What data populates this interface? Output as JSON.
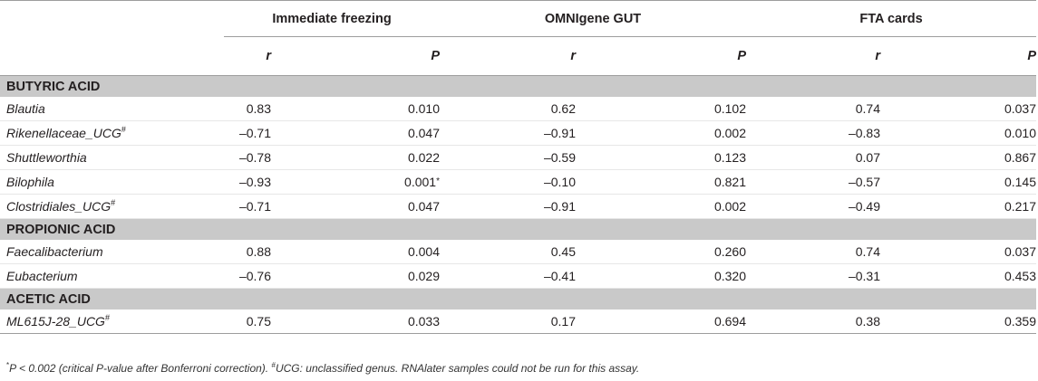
{
  "header": {
    "groups": [
      "Immediate freezing",
      "OMNIgene GUT",
      "FTA cards"
    ],
    "r_label": "r",
    "p_label": "P"
  },
  "sections": [
    {
      "title": "BUTYRIC ACID",
      "rows": [
        {
          "name": "Blautia",
          "sup": "",
          "if_r": "0.83",
          "if_p": "0.010",
          "if_p_mark": "",
          "og_r": "0.62",
          "og_p": "0.102",
          "fta_r": "0.74",
          "fta_p": "0.037"
        },
        {
          "name": "Rikenellaceae_UCG",
          "sup": "#",
          "if_r": "–0.71",
          "if_p": "0.047",
          "if_p_mark": "",
          "og_r": "–0.91",
          "og_p": "0.002",
          "fta_r": "–0.83",
          "fta_p": "0.010"
        },
        {
          "name": "Shuttleworthia",
          "sup": "",
          "if_r": "–0.78",
          "if_p": "0.022",
          "if_p_mark": "",
          "og_r": "–0.59",
          "og_p": "0.123",
          "fta_r": "0.07",
          "fta_p": "0.867"
        },
        {
          "name": "Bilophila",
          "sup": "",
          "if_r": "–0.93",
          "if_p": "0.001",
          "if_p_mark": "*",
          "og_r": "–0.10",
          "og_p": "0.821",
          "fta_r": "–0.57",
          "fta_p": "0.145"
        },
        {
          "name": "Clostridiales_UCG",
          "sup": "#",
          "if_r": "–0.71",
          "if_p": "0.047",
          "if_p_mark": "",
          "og_r": "–0.91",
          "og_p": "0.002",
          "fta_r": "–0.49",
          "fta_p": "0.217"
        }
      ]
    },
    {
      "title": "PROPIONIC ACID",
      "rows": [
        {
          "name": "Faecalibacterium",
          "sup": "",
          "if_r": "0.88",
          "if_p": "0.004",
          "if_p_mark": "",
          "og_r": "0.45",
          "og_p": "0.260",
          "fta_r": "0.74",
          "fta_p": "0.037"
        },
        {
          "name": "Eubacterium",
          "sup": "",
          "if_r": "–0.76",
          "if_p": "0.029",
          "if_p_mark": "",
          "og_r": "–0.41",
          "og_p": "0.320",
          "fta_r": "–0.31",
          "fta_p": "0.453"
        }
      ]
    },
    {
      "title": "ACETIC ACID",
      "rows": [
        {
          "name": "ML615J-28_UCG",
          "sup": "#",
          "if_r": "0.75",
          "if_p": "0.033",
          "if_p_mark": "",
          "og_r": "0.17",
          "og_p": "0.694",
          "fta_r": "0.38",
          "fta_p": "0.359"
        }
      ]
    }
  ],
  "footnote": {
    "star": "*",
    "part1": "P < 0.002 (critical P-value after Bonferroni correction).",
    "hash": "#",
    "part2": "UCG: unclassified genus. RNAlater samples could not be run for this assay."
  }
}
